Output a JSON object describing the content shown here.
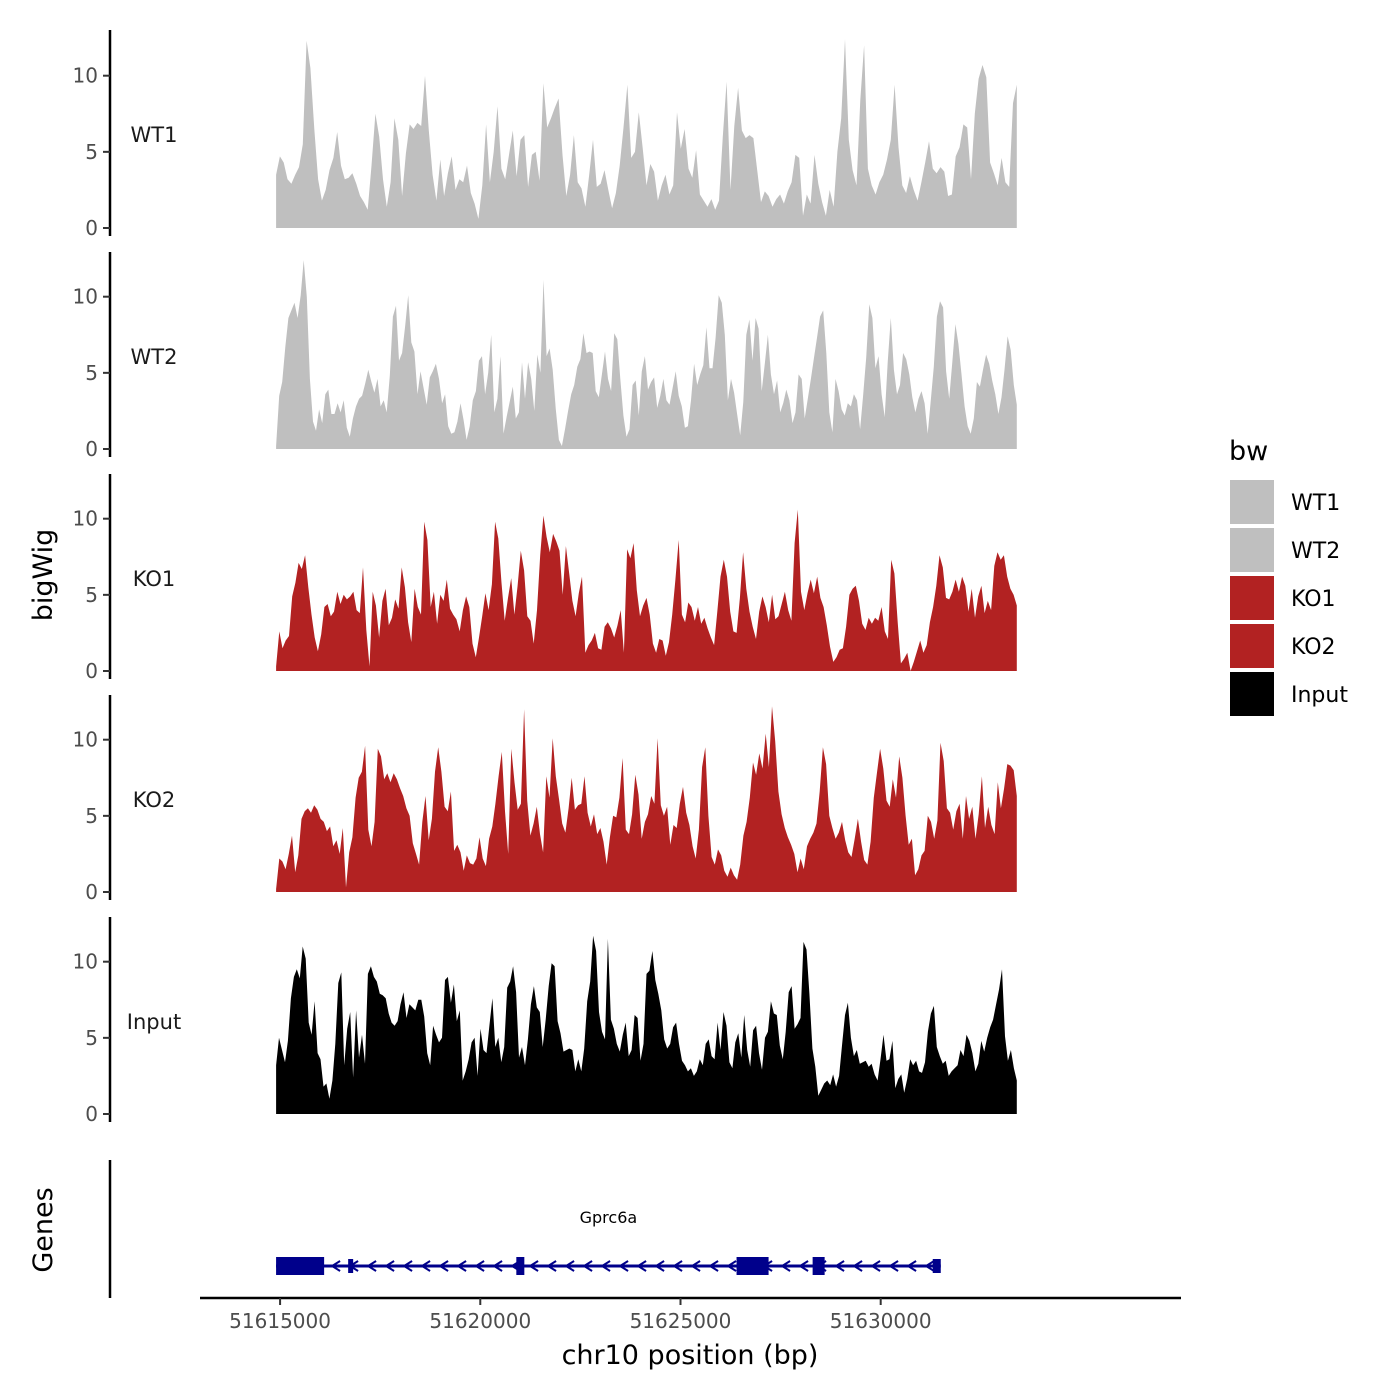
{
  "chart_data": {
    "type": "area",
    "region": {
      "chromosome": "chr10",
      "start": 51614900,
      "end": 51633400
    },
    "xlabel": "chr10 position (bp)",
    "ylabel": "bigWig",
    "genes_label": "Genes",
    "x_ticks": [
      51615000,
      51620000,
      51625000,
      51630000
    ],
    "x_tick_labels": [
      "51615000",
      "51620000",
      "51625000",
      "51630000"
    ],
    "xlim": [
      51613000,
      51637500
    ],
    "ylim": [
      0,
      13
    ],
    "y_ticks": [
      0,
      5,
      10
    ],
    "y_tick_labels": [
      "0",
      "5",
      "10"
    ],
    "legend": {
      "title": "bw",
      "position": "right",
      "entries": [
        {
          "label": "WT1",
          "color": "#bfbfbf"
        },
        {
          "label": "WT2",
          "color": "#bfbfbf"
        },
        {
          "label": "KO1",
          "color": "#b22222"
        },
        {
          "label": "KO2",
          "color": "#b22222"
        },
        {
          "label": "Input",
          "color": "#000000"
        }
      ]
    },
    "series": [
      {
        "name": "WT1",
        "color": "#bfbfbf",
        "values": [
          3.5,
          4.7,
          4.3,
          3.2,
          2.9,
          3.5,
          4.0,
          5.5,
          12.3,
          10.5,
          6.5,
          3.2,
          1.8,
          2.5,
          3.8,
          4.6,
          6.3,
          4.1,
          3.2,
          3.3,
          3.6,
          2.9,
          2.1,
          1.7,
          1.2,
          4.1,
          7.5,
          6.0,
          3.2,
          1.4,
          3.0,
          7.2,
          5.8,
          2.1,
          4.9,
          6.8,
          6.5,
          6.9,
          6.7,
          10.0,
          6.4,
          3.5,
          1.8,
          4.5,
          2.1,
          3.6,
          4.7,
          2.5,
          3.2,
          3.0,
          4.1,
          2.3,
          1.6,
          0.6,
          2.8,
          6.8,
          3.0,
          5.0,
          8.0,
          3.9,
          3.2,
          4.8,
          6.4,
          3.4,
          5.8,
          6.1,
          2.7,
          4.8,
          5.0,
          3.1,
          9.5,
          6.6,
          7.2,
          7.9,
          8.5,
          4.8,
          2.1,
          3.5,
          6.1,
          3.0,
          2.6,
          1.4,
          3.5,
          5.8,
          2.7,
          2.9,
          3.8,
          2.5,
          1.3,
          2.3,
          4.1,
          6.6,
          9.4,
          4.6,
          5.0,
          7.6,
          5.3,
          2.8,
          4.2,
          3.7,
          1.8,
          2.8,
          3.5,
          2.2,
          2.8,
          7.6,
          5.2,
          6.5,
          3.9,
          3.3,
          5.1,
          2.2,
          1.8,
          1.4,
          1.9,
          1.2,
          1.8,
          6.0,
          9.6,
          2.5,
          6.7,
          9.2,
          6.4,
          5.9,
          6.1,
          5.9,
          3.8,
          1.7,
          2.4,
          2.1,
          1.4,
          1.9,
          2.2,
          1.6,
          2.4,
          3.0,
          4.8,
          4.6,
          0.8,
          2.2,
          1.6,
          4.8,
          2.9,
          1.7,
          0.8,
          2.5,
          1.4,
          5.0,
          7.2,
          12.4,
          5.8,
          3.8,
          2.8,
          8.4,
          12.0,
          3.9,
          2.8,
          2.2,
          3.0,
          3.5,
          4.5,
          5.8,
          9.4,
          5.3,
          2.8,
          2.3,
          3.4,
          2.5,
          1.8,
          3.0,
          4.3,
          5.7,
          3.9,
          3.6,
          4.0,
          3.7,
          2.1,
          2.2,
          4.7,
          5.3,
          6.8,
          6.6,
          3.2,
          7.5,
          9.8,
          10.7,
          9.9,
          4.3,
          3.6,
          2.8,
          4.6,
          3.0,
          2.7,
          8.2,
          9.4
        ]
      },
      {
        "name": "WT2",
        "color": "#bfbfbf",
        "values": [
          0.2,
          3.5,
          4.4,
          6.7,
          8.6,
          9.1,
          9.6,
          8.6,
          10.1,
          12.4,
          10.0,
          4.6,
          1.8,
          1.2,
          2.6,
          1.7,
          3.6,
          3.9,
          2.3,
          2.3,
          3.0,
          2.4,
          3.2,
          1.4,
          0.8,
          2.0,
          2.8,
          3.3,
          3.5,
          4.3,
          5.2,
          4.4,
          3.7,
          4.6,
          2.8,
          3.2,
          2.4,
          4.8,
          8.7,
          9.4,
          5.8,
          6.3,
          8.1,
          10.1,
          7.0,
          6.4,
          3.6,
          5.1,
          4.0,
          2.9,
          4.7,
          5.1,
          5.6,
          4.6,
          3.0,
          3.6,
          1.5,
          1.0,
          1.1,
          1.8,
          3.0,
          1.9,
          0.6,
          1.5,
          3.2,
          3.8,
          5.8,
          6.1,
          3.6,
          5.0,
          7.5,
          2.4,
          3.3,
          6.1,
          1.0,
          2.1,
          3.1,
          4.1,
          2.0,
          2.4,
          5.7,
          3.3,
          5.7,
          4.6,
          2.5,
          6.2,
          5.0,
          11.1,
          6.1,
          6.6,
          5.2,
          2.6,
          0.6,
          0.2,
          1.3,
          2.5,
          3.6,
          4.2,
          5.4,
          5.9,
          7.6,
          6.3,
          6.4,
          6.3,
          3.8,
          3.4,
          4.9,
          6.4,
          4.6,
          3.8,
          7.6,
          7.2,
          4.6,
          2.2,
          0.8,
          1.3,
          4.2,
          4.5,
          2.2,
          5.1,
          6.1,
          3.9,
          4.4,
          4.7,
          2.7,
          3.5,
          4.6,
          3.2,
          2.9,
          4.0,
          5.1,
          3.5,
          2.8,
          1.4,
          1.5,
          3.2,
          5.6,
          4.2,
          4.9,
          5.5,
          8.0,
          5.3,
          5.3,
          7.3,
          10.1,
          9.6,
          7.5,
          3.2,
          4.6,
          3.7,
          2.3,
          0.9,
          3.1,
          7.5,
          8.5,
          5.8,
          8.6,
          7.9,
          3.8,
          5.6,
          7.5,
          4.9,
          3.6,
          4.5,
          2.4,
          3.0,
          3.9,
          3.2,
          1.7,
          2.4,
          4.9,
          4.6,
          2.0,
          3.3,
          4.6,
          6.0,
          7.3,
          8.7,
          9.1,
          6.3,
          2.4,
          1.1,
          4.6,
          3.8,
          2.6,
          2.2,
          3.0,
          2.8,
          3.6,
          3.2,
          1.3,
          3.5,
          6.0,
          9.5,
          8.6,
          5.3,
          6.1,
          3.6,
          2.1,
          5.7,
          8.6,
          5.2,
          3.6,
          4.2,
          6.3,
          5.9,
          4.9,
          3.4,
          2.4,
          3.3,
          3.8,
          3.0,
          1.0,
          3.2,
          5.4,
          8.7,
          9.7,
          9.3,
          5.1,
          3.3,
          5.7,
          8.2,
          6.9,
          4.9,
          2.8,
          1.5,
          1.0,
          2.0,
          4.4,
          4.1,
          5.2,
          6.2,
          5.6,
          4.5,
          3.6,
          2.3,
          3.4,
          5.2,
          7.4,
          6.5,
          4.2,
          2.9
        ]
      },
      {
        "name": "KO1",
        "color": "#b22222",
        "values": [
          0.3,
          2.6,
          1.5,
          2.0,
          2.3,
          4.9,
          5.8,
          7.1,
          6.7,
          7.6,
          5.5,
          3.7,
          2.2,
          1.3,
          2.4,
          4.2,
          4.4,
          3.6,
          3.9,
          5.2,
          4.4,
          5.0,
          4.7,
          4.9,
          5.2,
          4.0,
          3.8,
          6.8,
          2.7,
          0.3,
          5.2,
          4.3,
          2.2,
          4.6,
          5.4,
          3.0,
          3.5,
          4.7,
          4.1,
          6.8,
          5.5,
          3.2,
          1.9,
          5.4,
          4.2,
          3.7,
          9.8,
          8.6,
          4.2,
          5.2,
          3.1,
          5.0,
          4.6,
          6.0,
          4.1,
          3.7,
          3.4,
          2.6,
          4.0,
          4.9,
          4.2,
          1.8,
          0.9,
          2.2,
          3.6,
          5.1,
          4.0,
          5.7,
          9.8,
          8.7,
          5.8,
          3.3,
          4.8,
          6.1,
          3.7,
          5.6,
          7.9,
          6.6,
          3.6,
          3.3,
          1.8,
          4.0,
          7.6,
          10.2,
          8.8,
          7.8,
          9.0,
          8.5,
          7.9,
          5.0,
          8.2,
          6.4,
          4.6,
          3.6,
          5.1,
          6.2,
          1.2,
          1.7,
          2.0,
          2.5,
          1.5,
          1.4,
          2.9,
          3.2,
          2.8,
          2.2,
          3.0,
          4.0,
          1.2,
          8.0,
          7.4,
          8.4,
          5.3,
          3.6,
          4.3,
          4.8,
          3.7,
          1.8,
          1.2,
          2.1,
          2.0,
          1.0,
          1.9,
          3.7,
          6.0,
          8.6,
          3.7,
          3.2,
          4.5,
          4.2,
          3.3,
          4.2,
          3.1,
          3.5,
          2.8,
          2.2,
          1.7,
          3.9,
          6.2,
          7.3,
          6.2,
          3.9,
          2.6,
          2.5,
          4.8,
          7.8,
          5.4,
          3.9,
          2.9,
          2.1,
          3.9,
          4.9,
          4.2,
          3.2,
          5.0,
          3.4,
          3.6,
          4.4,
          5.2,
          4.0,
          3.3,
          8.4,
          10.6,
          5.2,
          4.0,
          5.1,
          6.0,
          5.1,
          6.2,
          4.8,
          4.2,
          3.0,
          1.6,
          0.6,
          0.9,
          1.4,
          1.5,
          2.9,
          5.0,
          5.4,
          5.6,
          4.6,
          3.1,
          2.7,
          3.5,
          3.1,
          3.5,
          3.3,
          4.2,
          2.6,
          2.1,
          7.3,
          6.4,
          3.2,
          0.5,
          0.8,
          1.2,
          0.0,
          0.6,
          1.3,
          2.0,
          1.2,
          1.7,
          3.2,
          4.2,
          5.6,
          7.6,
          6.8,
          4.8,
          4.7,
          5.2,
          6.0,
          5.2,
          6.2,
          5.6,
          3.9,
          5.4,
          3.5,
          4.9,
          5.6,
          3.8,
          4.6,
          4.0,
          6.9,
          7.8,
          7.3,
          7.6,
          6.2,
          5.4,
          5.0,
          4.3
        ]
      },
      {
        "name": "KO2",
        "color": "#b22222",
        "values": [
          0.2,
          2.2,
          2.0,
          1.5,
          2.5,
          3.7,
          1.3,
          2.4,
          4.8,
          5.3,
          5.5,
          5.2,
          5.7,
          5.4,
          4.8,
          4.6,
          4.0,
          4.3,
          3.0,
          3.4,
          2.5,
          4.2,
          0.3,
          2.6,
          3.6,
          6.2,
          7.5,
          7.9,
          9.6,
          4.1,
          3.0,
          4.6,
          9.4,
          8.9,
          7.4,
          7.8,
          7.2,
          7.8,
          7.4,
          6.8,
          6.3,
          5.5,
          5.0,
          3.2,
          2.5,
          1.8,
          4.6,
          6.3,
          3.4,
          4.8,
          7.9,
          9.5,
          7.9,
          5.6,
          5.3,
          6.6,
          2.7,
          3.1,
          2.6,
          1.4,
          2.4,
          1.9,
          1.8,
          2.2,
          3.6,
          2.2,
          1.7,
          3.5,
          4.3,
          5.8,
          7.6,
          9.2,
          5.3,
          2.5,
          9.4,
          7.2,
          5.4,
          5.8,
          12.0,
          6.0,
          3.7,
          4.5,
          5.6,
          3.8,
          2.6,
          7.6,
          6.2,
          10.1,
          7.6,
          6.1,
          4.5,
          3.9,
          5.5,
          7.5,
          5.4,
          5.7,
          5.8,
          7.6,
          5.2,
          4.3,
          5.1,
          3.8,
          4.2,
          3.3,
          1.8,
          3.6,
          5.0,
          4.9,
          6.2,
          8.8,
          4.1,
          3.8,
          5.1,
          7.7,
          6.4,
          3.5,
          4.6,
          5.1,
          6.3,
          5.8,
          10.1,
          5.7,
          5.0,
          5.6,
          3.1,
          4.4,
          4.2,
          5.8,
          6.9,
          5.2,
          4.4,
          3.0,
          2.2,
          4.1,
          8.2,
          9.5,
          5.0,
          2.3,
          1.8,
          2.8,
          2.4,
          1.4,
          1.0,
          1.6,
          1.1,
          0.8,
          1.8,
          3.7,
          4.6,
          6.2,
          8.5,
          7.7,
          9.1,
          8.1,
          10.4,
          8.2,
          12.2,
          9.9,
          6.6,
          5.1,
          4.2,
          3.6,
          3.1,
          2.5,
          1.3,
          2.2,
          1.5,
          3.0,
          3.5,
          3.9,
          4.5,
          6.6,
          9.5,
          8.4,
          5.0,
          4.2,
          3.5,
          3.9,
          4.6,
          3.4,
          2.6,
          2.3,
          3.5,
          4.8,
          3.3,
          2.1,
          1.8,
          3.3,
          6.2,
          7.8,
          9.4,
          8.1,
          6.0,
          5.6,
          7.4,
          6.2,
          8.9,
          7.5,
          5.0,
          3.1,
          3.5,
          1.1,
          1.5,
          2.4,
          2.7,
          5.0,
          4.6,
          3.5,
          4.7,
          9.8,
          8.6,
          5.5,
          5.2,
          4.1,
          5.3,
          5.8,
          3.5,
          6.3,
          4.8,
          5.6,
          3.5,
          5.1,
          7.6,
          4.2,
          5.6,
          4.4,
          3.8,
          7.2,
          5.5,
          6.8,
          8.4,
          8.3,
          8.0,
          6.3
        ]
      },
      {
        "name": "Input",
        "color": "#000000",
        "values": [
          3.2,
          5.0,
          4.2,
          3.4,
          4.8,
          7.6,
          9.0,
          9.5,
          8.9,
          11.0,
          10.2,
          6.0,
          5.2,
          7.4,
          4.0,
          3.6,
          1.8,
          2.0,
          1.0,
          2.2,
          4.6,
          8.6,
          9.3,
          3.2,
          5.6,
          6.7,
          2.4,
          6.8,
          3.7,
          5.2,
          3.3,
          9.2,
          9.7,
          9.0,
          8.7,
          7.9,
          7.8,
          7.6,
          6.6,
          6.0,
          5.8,
          6.1,
          7.2,
          8.0,
          6.3,
          7.2,
          7.0,
          6.8,
          7.5,
          7.5,
          6.4,
          4.0,
          3.2,
          5.8,
          5.2,
          4.7,
          5.0,
          8.8,
          9.0,
          7.3,
          8.5,
          6.1,
          6.8,
          2.2,
          2.8,
          3.6,
          4.7,
          5.0,
          2.5,
          5.6,
          4.2,
          4.0,
          5.8,
          7.6,
          4.4,
          5.0,
          3.4,
          4.4,
          8.3,
          8.7,
          9.7,
          8.0,
          3.7,
          4.4,
          3.2,
          4.9,
          7.2,
          8.4,
          7.0,
          6.7,
          4.4,
          6.2,
          8.4,
          9.9,
          9.7,
          6.1,
          5.3,
          4.1,
          4.2,
          4.3,
          4.2,
          2.8,
          3.6,
          2.8,
          4.3,
          7.4,
          8.7,
          11.7,
          10.7,
          6.7,
          5.4,
          4.9,
          11.5,
          6.2,
          5.6,
          4.6,
          4.1,
          5.2,
          6.0,
          3.8,
          4.2,
          6.5,
          6.3,
          3.5,
          4.6,
          9.2,
          9.4,
          10.7,
          8.8,
          7.9,
          6.8,
          4.9,
          4.3,
          4.6,
          5.7,
          6.0,
          4.6,
          3.5,
          3.2,
          2.8,
          3.0,
          2.5,
          2.8,
          3.6,
          3.2,
          4.6,
          4.9,
          3.8,
          3.6,
          6.0,
          4.2,
          6.7,
          5.8,
          3.4,
          3.0,
          4.7,
          5.3,
          3.7,
          6.5,
          4.2,
          3.1,
          5.5,
          5.8,
          4.0,
          2.9,
          5.0,
          5.4,
          7.4,
          6.6,
          6.5,
          4.5,
          3.6,
          5.4,
          8.0,
          8.4,
          5.6,
          5.9,
          6.3,
          11.3,
          10.8,
          7.9,
          4.3,
          3.1,
          1.2,
          1.6,
          2.0,
          2.2,
          1.9,
          2.6,
          1.8,
          2.5,
          4.5,
          6.5,
          7.3,
          5.0,
          3.8,
          4.2,
          3.3,
          3.4,
          3.5,
          3.1,
          3.3,
          2.6,
          2.2,
          3.6,
          5.2,
          3.5,
          3.6,
          4.8,
          1.7,
          2.3,
          2.6,
          1.4,
          2.3,
          3.6,
          3.2,
          3.5,
          2.8,
          2.7,
          3.4,
          5.4,
          6.6,
          7.1,
          4.4,
          3.8,
          3.3,
          3.5,
          2.5,
          2.8,
          3.0,
          3.2,
          4.2,
          3.8,
          5.2,
          4.8,
          4.0,
          2.8,
          3.3,
          4.8,
          4.1,
          5.0,
          5.7,
          6.2,
          7.2,
          8.2,
          9.5,
          5.1,
          3.5,
          4.2,
          3.0,
          2.2
        ]
      }
    ],
    "genes": [
      {
        "name": "Gprc6a",
        "strand": "-",
        "color": "#00008b",
        "start": 51614900,
        "end": 51631500,
        "exons": [
          {
            "start": 51614900,
            "end": 51616100,
            "type": "thick"
          },
          {
            "start": 51616700,
            "end": 51616800,
            "type": "thin"
          },
          {
            "start": 51620900,
            "end": 51621100,
            "type": "thick"
          },
          {
            "start": 51626400,
            "end": 51627200,
            "type": "thick"
          },
          {
            "start": 51628300,
            "end": 51628600,
            "type": "thick"
          },
          {
            "start": 51631300,
            "end": 51631500,
            "type": "thin"
          }
        ]
      }
    ]
  }
}
